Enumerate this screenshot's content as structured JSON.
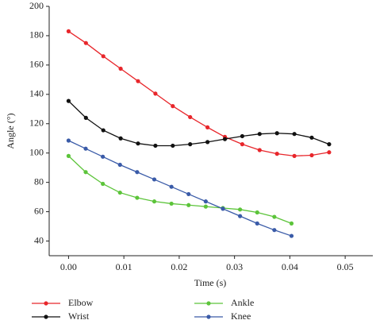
{
  "chart_data": {
    "type": "line",
    "x_label": "Time (s)",
    "y_label": "Angle (°)",
    "xlim": [
      -0.0035,
      0.055
    ],
    "ylim": [
      30,
      200
    ],
    "xticks": [
      {
        "value": 0,
        "label": "0.00"
      },
      {
        "value": 0.01,
        "label": "0.01"
      },
      {
        "value": 0.02,
        "label": "0.02"
      },
      {
        "value": 0.03,
        "label": "0.03"
      },
      {
        "value": 0.04,
        "label": "0.04"
      },
      {
        "value": 0.05,
        "label": "0.05"
      }
    ],
    "yticks": [
      40,
      60,
      80,
      100,
      120,
      140,
      160,
      180,
      200
    ],
    "series": [
      {
        "name": "Elbow",
        "color": "#e8262b",
        "x": [
          0,
          0.00314,
          0.00628,
          0.00942,
          0.01256,
          0.0157,
          0.01884,
          0.02198,
          0.02512,
          0.02826,
          0.0314,
          0.03454,
          0.03768,
          0.04082,
          0.04396,
          0.0471
        ],
        "values": [
          183,
          175,
          166,
          157.5,
          149,
          140.5,
          132,
          124.5,
          117.5,
          111,
          106,
          102,
          99.5,
          98,
          98.5,
          100.5
        ]
      },
      {
        "name": "Wrist",
        "color": "#111111",
        "x": [
          0,
          0.00314,
          0.00628,
          0.00942,
          0.01256,
          0.0157,
          0.01884,
          0.02198,
          0.02512,
          0.02826,
          0.0314,
          0.03454,
          0.03768,
          0.04082,
          0.04396,
          0.0471
        ],
        "values": [
          135.5,
          124,
          115.5,
          110,
          106.5,
          105,
          105,
          106,
          107.5,
          109.5,
          111.5,
          113,
          113.5,
          113,
          110.5,
          106
        ]
      },
      {
        "name": "Ankle",
        "color": "#5cc43a",
        "x": [
          0,
          0.0031,
          0.0062,
          0.0093,
          0.0124,
          0.0155,
          0.0186,
          0.0217,
          0.0248,
          0.0279,
          0.031,
          0.0341,
          0.0372,
          0.0403
        ],
        "values": [
          98,
          87,
          79,
          73,
          69.5,
          67,
          65.5,
          64.5,
          63.5,
          62.5,
          61.5,
          59.5,
          56.5,
          52
        ]
      },
      {
        "name": "Knee",
        "color": "#3a5ba8",
        "x": [
          0,
          0.0031,
          0.0062,
          0.0093,
          0.0124,
          0.0155,
          0.0186,
          0.0217,
          0.0248,
          0.0279,
          0.031,
          0.0341,
          0.0372,
          0.0403
        ],
        "values": [
          108.5,
          103,
          97.5,
          92,
          87,
          82,
          77,
          72,
          67,
          62,
          57,
          52,
          47.5,
          43.5
        ]
      }
    ]
  }
}
